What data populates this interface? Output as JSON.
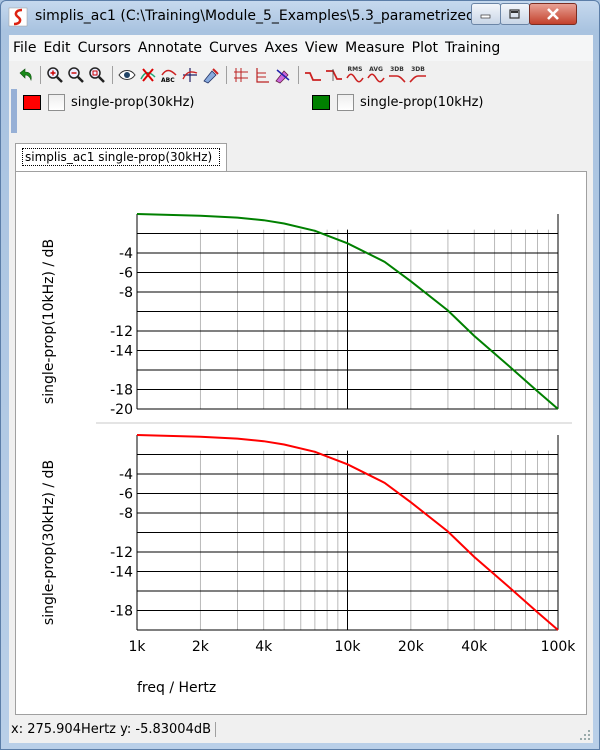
{
  "window": {
    "title": "simplis_ac1 (C:\\Training\\Module_5_Examples\\5.3_parametrized_..."
  },
  "menu": {
    "items": [
      "File",
      "Edit",
      "Cursors",
      "Annotate",
      "Curves",
      "Axes",
      "View",
      "Measure",
      "Plot",
      "Training"
    ]
  },
  "toolbar": {
    "icons": [
      "undo-icon",
      "zoom-in-icon",
      "zoom-out-icon",
      "zoom-fit-icon",
      "eye-icon",
      "delete-curve-icon",
      "abc-icon",
      "cursor-icon",
      "paint-icon",
      "grid-1-icon",
      "grid-2-icon",
      "style-icon",
      "pulse-icon",
      "pulse-down-icon",
      "rms-icon",
      "avg-icon",
      "3db-icon",
      "3db-down-icon"
    ],
    "labels": {
      "rms": "RMS",
      "avg": "AVG",
      "db1": "3DB",
      "db2": "3DB"
    }
  },
  "legend": {
    "items": [
      {
        "label": "single-prop(30kHz)",
        "color": "#ff0000"
      },
      {
        "label": "single-prop(10kHz)",
        "color": "#008000"
      }
    ]
  },
  "tab": {
    "label": "simplis_ac1 single-prop(30kHz)"
  },
  "status": {
    "text": "x: 275.904Hertz  y: -5.83004dB"
  },
  "chart_data": [
    {
      "type": "line",
      "xscale": "log",
      "xlim": [
        1000,
        100000
      ],
      "ylim": [
        -20,
        0
      ],
      "ylabel": "single-prop(10kHz) / dB",
      "yticks": [
        -4,
        -6,
        -8,
        -12,
        -14,
        -18,
        -20
      ],
      "grid": true,
      "series": [
        {
          "name": "single-prop(10kHz)",
          "color": "#008000",
          "x": [
            1000,
            2000,
            3000,
            4000,
            5000,
            7000,
            10000,
            15000,
            20000,
            30000,
            40000,
            60000,
            80000,
            100000
          ],
          "y": [
            0,
            -0.17,
            -0.37,
            -0.64,
            -0.97,
            -1.72,
            -3.0,
            -4.9,
            -6.9,
            -9.9,
            -12.5,
            -15.8,
            -18.2,
            -20.0
          ]
        }
      ]
    },
    {
      "type": "line",
      "xscale": "log",
      "xlim": [
        1000,
        100000
      ],
      "ylim": [
        -20,
        0
      ],
      "xlabel": "freq / Hertz",
      "ylabel": "single-prop(30kHz) / dB",
      "yticks": [
        -4,
        -6,
        -8,
        -12,
        -14,
        -18
      ],
      "xticks": [
        1000,
        2000,
        4000,
        10000,
        20000,
        40000,
        100000
      ],
      "xticklabels": [
        "1k",
        "2k",
        "4k",
        "10k",
        "20k",
        "40k",
        "100k"
      ],
      "grid": true,
      "series": [
        {
          "name": "single-prop(30kHz)",
          "color": "#ff0000",
          "x": [
            1000,
            2000,
            3000,
            4000,
            5000,
            7000,
            10000,
            15000,
            20000,
            30000,
            40000,
            60000,
            80000,
            100000
          ],
          "y": [
            0,
            -0.17,
            -0.37,
            -0.64,
            -0.97,
            -1.72,
            -3.0,
            -4.9,
            -6.9,
            -9.9,
            -12.5,
            -15.8,
            -18.2,
            -20.0
          ]
        }
      ]
    }
  ]
}
